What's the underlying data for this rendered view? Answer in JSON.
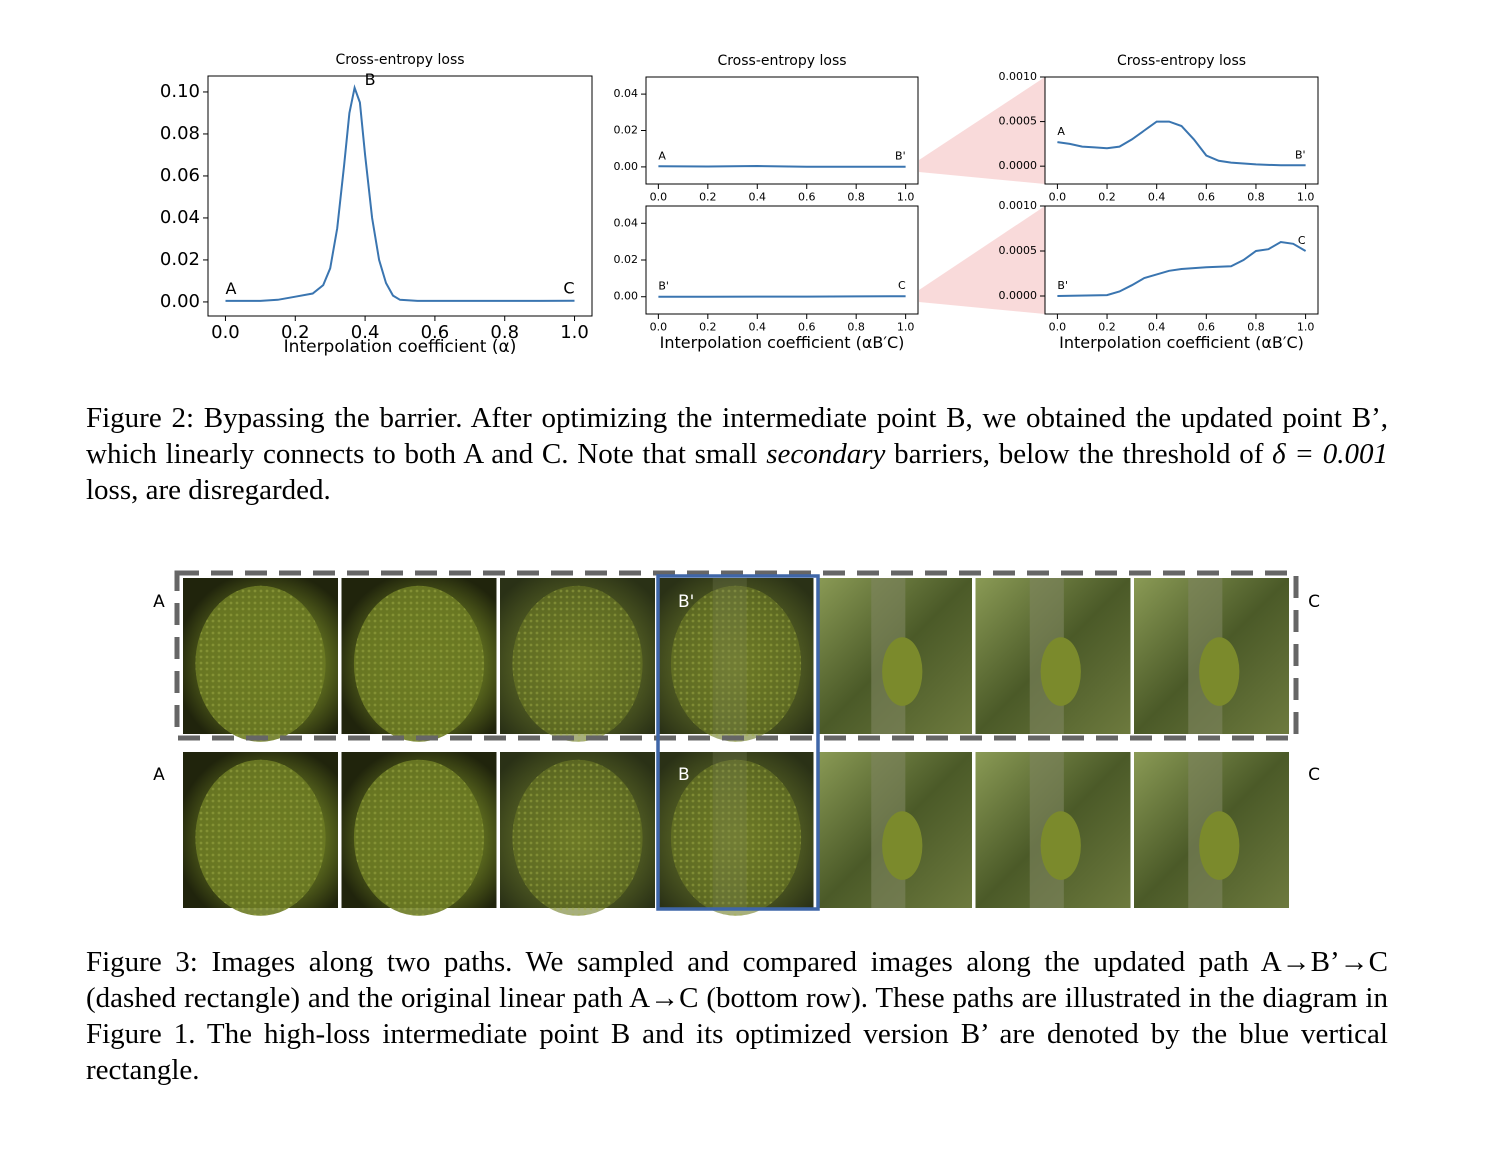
{
  "chart_data": [
    {
      "type": "line",
      "title": "Cross-entropy loss",
      "xlabel": "Interpolation coefficient (α)",
      "x": [
        0,
        0.05,
        0.1,
        0.15,
        0.2,
        0.25,
        0.28,
        0.3,
        0.32,
        0.34,
        0.355,
        0.37,
        0.385,
        0.4,
        0.42,
        0.44,
        0.46,
        0.48,
        0.5,
        0.55,
        0.6,
        0.7,
        0.8,
        0.9,
        1.0
      ],
      "values": [
        0.0005,
        0.0005,
        0.0005,
        0.001,
        0.0025,
        0.004,
        0.008,
        0.016,
        0.035,
        0.065,
        0.09,
        0.102,
        0.095,
        0.07,
        0.04,
        0.02,
        0.009,
        0.003,
        0.001,
        0.0005,
        0.0005,
        0.0005,
        0.0005,
        0.0005,
        0.0006
      ],
      "color": "#3a75b0",
      "annotations": [
        "A",
        "B",
        "C"
      ],
      "xlim": [
        -0.05,
        1.05
      ],
      "ylim": [
        -0.0067,
        0.1076
      ],
      "xticks": [
        {
          "value": 0,
          "label": "0.0"
        },
        0.2,
        0.4,
        0.6,
        0.8,
        {
          "value": 1,
          "label": "1.0"
        }
      ],
      "yticks": [
        {
          "value": 0,
          "label": "0.00"
        },
        0.02,
        0.04,
        0.06,
        0.08,
        {
          "value": 0.1,
          "label": "0.10"
        }
      ]
    },
    {
      "type": "line",
      "title": "Cross-entropy loss",
      "x": [
        0,
        0.2,
        0.4,
        0.6,
        0.8,
        1.0
      ],
      "values": [
        0.0003,
        0.0002,
        0.0005,
        0.0001,
        0.0001,
        0.0001
      ],
      "color": "#3a75b0",
      "annotations": [
        "A",
        "B'"
      ],
      "xlim": [
        -0.05,
        1.05
      ],
      "ylim": [
        -0.0094,
        0.0494
      ],
      "xticks": [
        {
          "value": 0,
          "label": "0.0"
        },
        0.2,
        0.4,
        0.6,
        0.8,
        {
          "value": 1,
          "label": "1.0"
        }
      ],
      "yticks": [
        {
          "value": 0,
          "label": "0.00"
        },
        0.02,
        0.04
      ]
    },
    {
      "type": "line",
      "title": "Cross-entropy loss",
      "x": [
        0,
        0.05,
        0.1,
        0.15,
        0.2,
        0.25,
        0.3,
        0.35,
        0.4,
        0.45,
        0.5,
        0.55,
        0.6,
        0.65,
        0.7,
        0.8,
        0.9,
        1.0
      ],
      "values": [
        0.00027,
        0.00025,
        0.00022,
        0.00021,
        0.0002,
        0.00022,
        0.0003,
        0.0004,
        0.0005,
        0.0005,
        0.00045,
        0.0003,
        0.00012,
        6e-05,
        4e-05,
        2e-05,
        1e-05,
        1e-05
      ],
      "color": "#3a75b0",
      "annotations": [
        "A",
        "B'"
      ],
      "xlim": [
        -0.05,
        1.05
      ],
      "ylim": [
        -0.0002,
        0.001
      ],
      "xticks": [
        {
          "value": 0,
          "label": "0.0"
        },
        0.2,
        0.4,
        0.6,
        0.8,
        {
          "value": 1,
          "label": "1.0"
        }
      ],
      "yticks": [
        {
          "value": 0,
          "label": "0.0000"
        },
        0.0005,
        {
          "value": 0.001,
          "label": "0.0010"
        }
      ]
    },
    {
      "type": "line",
      "xlabel": "Interpolation coefficient (αB′C)",
      "x": [
        0,
        0.2,
        0.4,
        0.6,
        0.8,
        1.0
      ],
      "values": [
        0,
        0,
        0.0001,
        0.0001,
        0.0002,
        0.0003
      ],
      "color": "#3a75b0",
      "annotations": [
        "B'",
        "C"
      ],
      "xlim": [
        -0.05,
        1.05
      ],
      "ylim": [
        -0.0094,
        0.0494
      ],
      "xticks": [
        {
          "value": 0,
          "label": "0.0"
        },
        0.2,
        0.4,
        0.6,
        0.8,
        {
          "value": 1,
          "label": "1.0"
        }
      ],
      "yticks": [
        {
          "value": 0,
          "label": "0.00"
        },
        0.02,
        0.04
      ]
    },
    {
      "type": "line",
      "xlabel": "Interpolation coefficient (αB′C)",
      "x": [
        0,
        0.2,
        0.25,
        0.3,
        0.35,
        0.4,
        0.45,
        0.5,
        0.6,
        0.7,
        0.75,
        0.8,
        0.85,
        0.9,
        0.95,
        1.0
      ],
      "values": [
        0,
        1e-05,
        5e-05,
        0.00012,
        0.0002,
        0.00024,
        0.00028,
        0.0003,
        0.00032,
        0.00033,
        0.0004,
        0.0005,
        0.00052,
        0.0006,
        0.00058,
        0.0005
      ],
      "color": "#3a75b0",
      "annotations": [
        "B'",
        "C"
      ],
      "xlim": [
        -0.05,
        1.05
      ],
      "ylim": [
        -0.0002,
        0.001
      ],
      "xticks": [
        {
          "value": 0,
          "label": "0.0"
        },
        0.2,
        0.4,
        0.6,
        0.8,
        {
          "value": 1,
          "label": "1.0"
        }
      ],
      "yticks": [
        {
          "value": 0,
          "label": "0.0000"
        },
        0.0005,
        {
          "value": 0.001,
          "label": "0.0010"
        }
      ]
    }
  ],
  "figure2": {
    "caption": [
      "Figure 2: Bypassing the barrier. After optimizing the intermediate point B, we obtained the updated point B’, which linearly connects to both A and C. Note that small ",
      "secondary",
      " barriers, below the threshold of ",
      "δ = 0.001",
      " loss, are disregarded."
    ]
  },
  "figure3": {
    "rows": [
      {
        "start": "A",
        "mid": "B'",
        "end": "C"
      },
      {
        "start": "A",
        "mid": "B",
        "end": "C"
      }
    ],
    "caption": "Figure 3: Images along two paths. We sampled and compared images along the updated path A→B’→C (dashed rectangle) and the original linear path A→C (bottom row). These paths are illustrated in the diagram in Figure 1. The high-loss intermediate point B and its optimized version B’ are denoted by the blue vertical rectangle."
  }
}
